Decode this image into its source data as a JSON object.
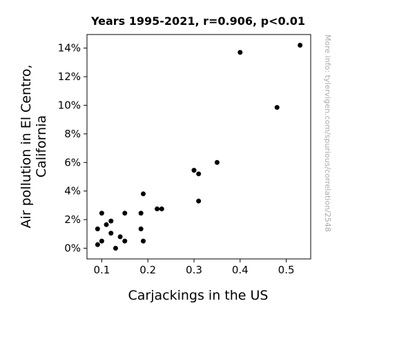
{
  "chart_data": {
    "type": "scatter",
    "title": "Years 1995-2021, r=0.906, p<0.01",
    "xlabel": "Carjackings in the US",
    "ylabel_lines": [
      "Air pollution in El Centro,",
      "California"
    ],
    "side_note": "More info: tylervigen.com/spurious/correlation/2548",
    "xlim": [
      0.068,
      0.553
    ],
    "ylim": [
      -0.0075,
      0.1495
    ],
    "x_ticks": [
      {
        "value": 0.1,
        "label": "0.1"
      },
      {
        "value": 0.2,
        "label": "0.2"
      },
      {
        "value": 0.3,
        "label": "0.3"
      },
      {
        "value": 0.4,
        "label": "0.4"
      },
      {
        "value": 0.5,
        "label": "0.5"
      }
    ],
    "y_ticks": [
      {
        "value": 0.0,
        "label": "0%"
      },
      {
        "value": 0.02,
        "label": "2%"
      },
      {
        "value": 0.04,
        "label": "4%"
      },
      {
        "value": 0.06,
        "label": "6%"
      },
      {
        "value": 0.08,
        "label": "8%"
      },
      {
        "value": 0.1,
        "label": "10%"
      },
      {
        "value": 0.12,
        "label": "12%"
      },
      {
        "value": 0.14,
        "label": "14%"
      }
    ],
    "grid": false,
    "marker_color": "#000000",
    "points": [
      {
        "x": 0.091,
        "y": 0.0025
      },
      {
        "x": 0.091,
        "y": 0.0135
      },
      {
        "x": 0.1,
        "y": 0.0245
      },
      {
        "x": 0.1,
        "y": 0.005
      },
      {
        "x": 0.11,
        "y": 0.0165
      },
      {
        "x": 0.12,
        "y": 0.019
      },
      {
        "x": 0.12,
        "y": 0.0105
      },
      {
        "x": 0.13,
        "y": 0.0
      },
      {
        "x": 0.14,
        "y": 0.008
      },
      {
        "x": 0.15,
        "y": 0.0245
      },
      {
        "x": 0.15,
        "y": 0.005
      },
      {
        "x": 0.185,
        "y": 0.0245
      },
      {
        "x": 0.185,
        "y": 0.0135
      },
      {
        "x": 0.19,
        "y": 0.038
      },
      {
        "x": 0.19,
        "y": 0.005
      },
      {
        "x": 0.22,
        "y": 0.0275
      },
      {
        "x": 0.23,
        "y": 0.0275
      },
      {
        "x": 0.3,
        "y": 0.0545
      },
      {
        "x": 0.31,
        "y": 0.052
      },
      {
        "x": 0.31,
        "y": 0.033
      },
      {
        "x": 0.35,
        "y": 0.06
      },
      {
        "x": 0.4,
        "y": 0.137
      },
      {
        "x": 0.48,
        "y": 0.0985
      },
      {
        "x": 0.53,
        "y": 0.142
      }
    ]
  }
}
